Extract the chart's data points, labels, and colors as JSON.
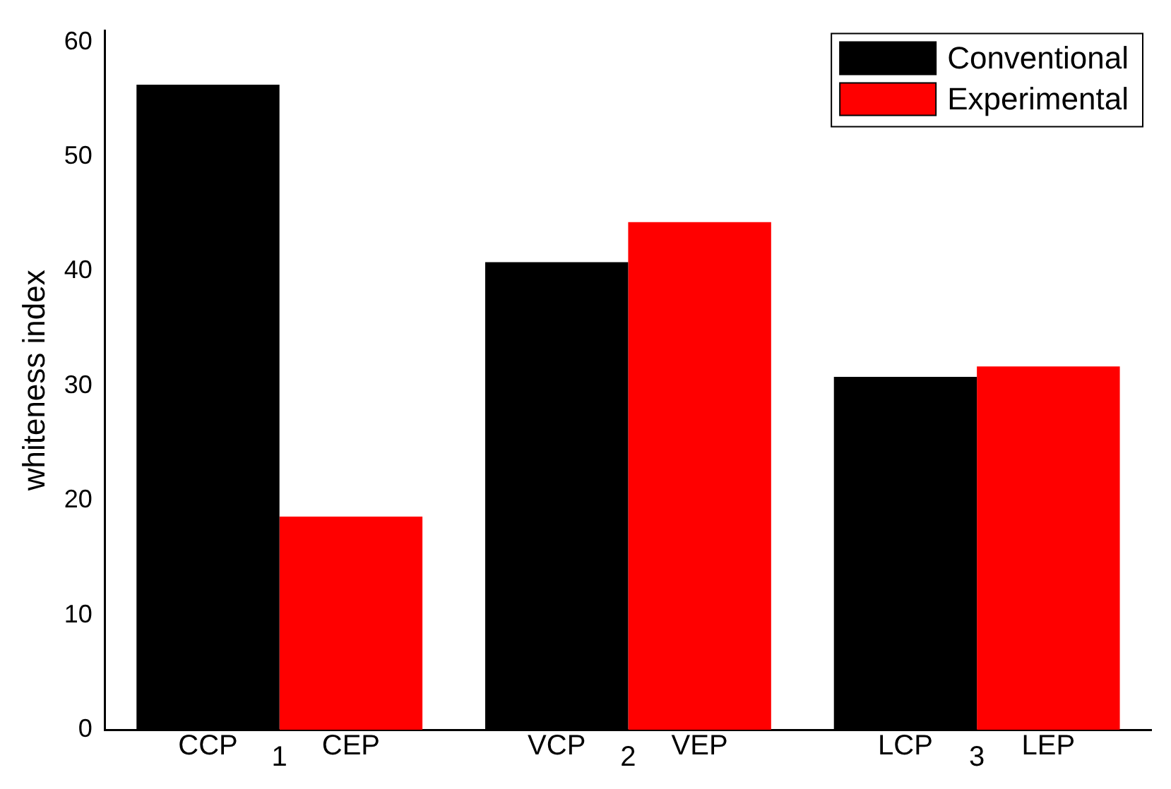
{
  "chart_data": {
    "type": "bar",
    "ylabel": "whiteness index",
    "categories": [
      "1",
      "2",
      "3"
    ],
    "series": [
      {
        "name": "Conventional",
        "color": "#000000",
        "values": [
          56.3,
          40.8,
          30.8
        ]
      },
      {
        "name": "Experimental",
        "color": "#ff0000",
        "values": [
          18.6,
          44.3,
          31.7
        ]
      }
    ],
    "ylim": [
      0,
      61
    ],
    "yticks": [
      0,
      10,
      20,
      30,
      40,
      50,
      60
    ],
    "grid": false,
    "legend": "top right",
    "annotations": [
      "CCP",
      "CEP",
      "VCP",
      "VEP",
      "LCP",
      "LEP"
    ]
  }
}
